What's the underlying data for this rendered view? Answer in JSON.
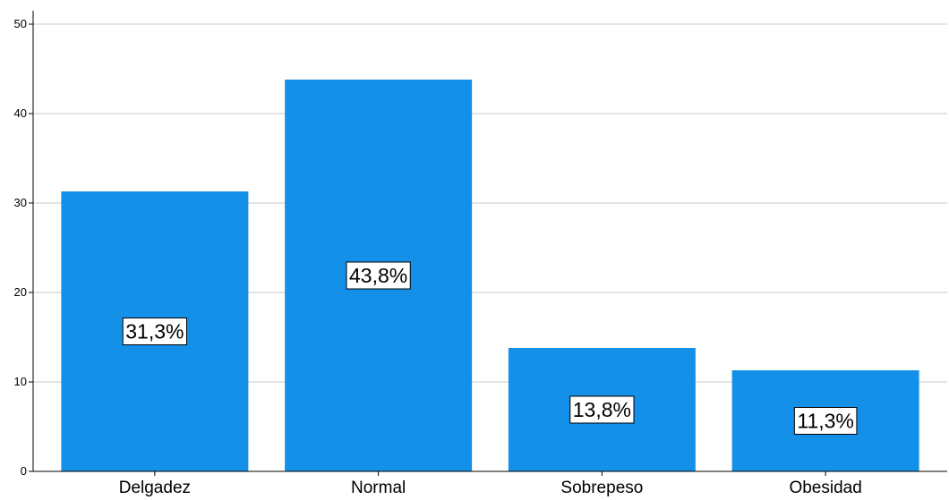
{
  "chart_data": {
    "type": "bar",
    "categories": [
      "Delgadez",
      "Normal",
      "Sobrepeso",
      "Obesidad"
    ],
    "values": [
      31.3,
      43.8,
      13.8,
      11.3
    ],
    "data_labels": [
      "31,3%",
      "43,8%",
      "13,8%",
      "11,3%"
    ],
    "yticks": [
      "0",
      "10",
      "20",
      "30",
      "40",
      "50"
    ],
    "ylim": [
      0,
      50
    ],
    "grid": true,
    "bar_color": "#1590e8",
    "title": "",
    "xlabel": "",
    "ylabel": ""
  }
}
